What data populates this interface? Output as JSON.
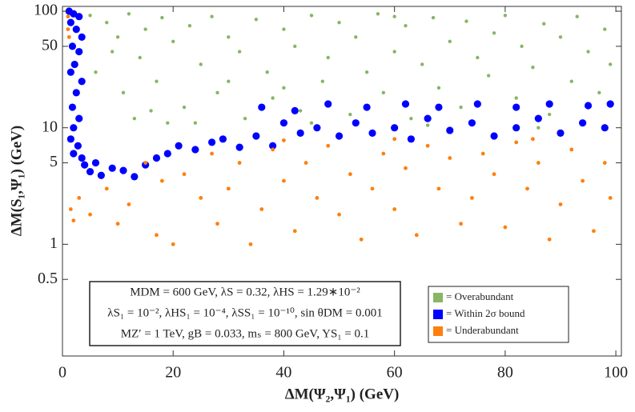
{
  "chart_data": {
    "type": "scatter",
    "xlabel": "ΔM(Ψ₂,Ψ₁)  (GeV)",
    "ylabel": "ΔM(S₁,Ψ₁) (GeV)",
    "xlim": [
      0,
      101
    ],
    "xticks": [
      0,
      20,
      40,
      60,
      80,
      100
    ],
    "ylim": [
      0.11,
      110
    ],
    "yticks": [
      0.5,
      1,
      5,
      10,
      50,
      100
    ],
    "log_y": true,
    "grid": false,
    "legend_position": "lower right",
    "annotation": [
      "MDM = 600 GeV, λS = 0.32, λHS = 1.29∗10⁻²",
      "λS₁ = 10⁻², λHS₁ = 10⁻⁴, λSS₁ = 10⁻¹⁰, sin θDM = 0.001",
      "MZ′ = 1 TeV, gB = 0.033, mₛ = 800 GeV, YS₁ = 0.1"
    ],
    "series": [
      {
        "name": "= Overabundant",
        "color": "#88b566",
        "x": [
          5,
          8,
          10,
          12,
          14,
          15,
          17,
          18,
          20,
          22,
          23,
          25,
          27,
          28,
          30,
          32,
          33,
          35,
          37,
          38,
          40,
          42,
          43,
          45,
          47,
          48,
          50,
          52,
          53,
          55,
          57,
          58,
          60,
          62,
          63,
          65,
          67,
          68,
          70,
          72,
          73,
          75,
          77,
          78,
          80,
          82,
          83,
          85,
          87,
          88,
          90,
          92,
          93,
          95,
          97,
          98,
          99,
          6,
          9,
          11,
          13,
          16,
          19,
          24,
          45,
          66,
          86,
          30,
          60,
          40
        ],
        "values": [
          92,
          80,
          60,
          95,
          40,
          70,
          25,
          88,
          55,
          15,
          75,
          35,
          90,
          20,
          60,
          45,
          12,
          85,
          30,
          18,
          70,
          50,
          14,
          92,
          25,
          40,
          80,
          13,
          60,
          30,
          95,
          20,
          45,
          75,
          12,
          35,
          88,
          22,
          55,
          15,
          82,
          40,
          28,
          65,
          92,
          18,
          50,
          33,
          78,
          13,
          60,
          25,
          90,
          45,
          20,
          70,
          35,
          30,
          45,
          20,
          12,
          14,
          11,
          11,
          11,
          10.5,
          10,
          25,
          90,
          22
        ]
      },
      {
        "name": "= Within 2σ bound",
        "color": "#0000ff",
        "x": [
          1.2,
          2,
          3,
          1.5,
          2.5,
          3.5,
          1.8,
          3,
          2.2,
          1.5,
          3.5,
          2.5,
          1.8,
          3,
          2,
          1.5,
          2.8,
          2,
          3.5,
          4,
          5,
          6,
          7,
          9,
          11,
          13,
          15,
          17,
          19,
          21,
          24,
          27,
          29,
          32,
          35,
          38,
          40,
          43,
          46,
          50,
          53,
          56,
          60,
          63,
          66,
          70,
          74,
          78,
          82,
          86,
          90,
          94,
          98,
          36,
          42,
          48,
          55,
          62,
          68,
          75,
          82,
          88,
          95,
          99
        ],
        "values": [
          100,
          95,
          90,
          80,
          70,
          60,
          50,
          45,
          35,
          30,
          25,
          20,
          15,
          12,
          10,
          8,
          7,
          6,
          5.5,
          4.8,
          4.2,
          5,
          3.9,
          4.5,
          4.3,
          3.8,
          4.8,
          5.5,
          6,
          7,
          6.5,
          7.5,
          8,
          6.8,
          8.5,
          7,
          11,
          9,
          10,
          8.5,
          11,
          9,
          10,
          8,
          12,
          9.5,
          11,
          8.5,
          10,
          12,
          9,
          11,
          10,
          15,
          14,
          16,
          15,
          16,
          15,
          16,
          15,
          16,
          15.5,
          16
        ]
      },
      {
        "name": "= Underabundant",
        "color": "#ff7f0e",
        "x": [
          1,
          1,
          1.2,
          1.5,
          2,
          3,
          5,
          8,
          10,
          12,
          15,
          17,
          18,
          20,
          22,
          25,
          27,
          28,
          30,
          32,
          34,
          36,
          38,
          40,
          42,
          44,
          46,
          48,
          50,
          52,
          54,
          56,
          58,
          60,
          62,
          64,
          66,
          68,
          70,
          72,
          74,
          76,
          78,
          80,
          82,
          84,
          86,
          88,
          90,
          92,
          94,
          96,
          98,
          99,
          85,
          60,
          40
        ],
        "values": [
          90,
          70,
          60,
          2,
          1.6,
          2.5,
          1.8,
          3,
          1.5,
          2.2,
          5,
          1.2,
          3.5,
          1,
          4,
          2.5,
          6,
          1.5,
          3,
          5,
          1,
          2,
          6.5,
          3.5,
          1.3,
          5,
          2.5,
          7,
          1.8,
          4,
          1.1,
          3,
          6,
          2,
          4.5,
          1.2,
          7,
          3,
          5.5,
          1.5,
          2.5,
          6,
          4,
          1.4,
          7.5,
          3,
          5,
          1.1,
          2.2,
          6.5,
          3.5,
          1.3,
          5,
          2.5,
          8,
          8,
          7.8
        ]
      }
    ]
  }
}
